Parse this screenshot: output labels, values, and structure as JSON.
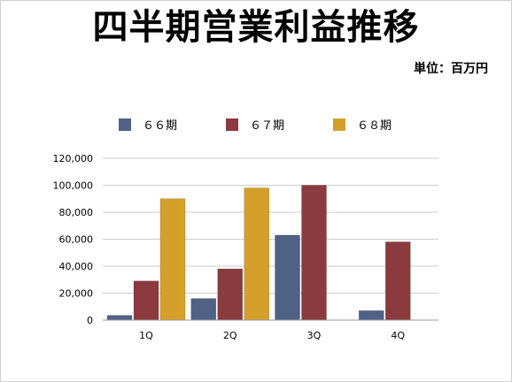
{
  "title": "四半期営業利益推移",
  "unit_label": "単位：百万円",
  "chart_data": {
    "type": "bar",
    "categories": [
      "1Q",
      "2Q",
      "3Q",
      "4Q"
    ],
    "series": [
      {
        "name": "６６期",
        "color": "#4f6185",
        "values": [
          3500,
          16000,
          63000,
          7000
        ]
      },
      {
        "name": "６７期",
        "color": "#8b3a3e",
        "values": [
          29000,
          38000,
          100000,
          58000
        ]
      },
      {
        "name": "６８期",
        "color": "#d4a02a",
        "values": [
          90000,
          98000,
          null,
          null
        ]
      }
    ],
    "y_ticks": [
      "0",
      "20,000",
      "40,000",
      "60,000",
      "80,000",
      "100,000",
      "120,000"
    ],
    "ylim": [
      0,
      120000
    ],
    "grid": true,
    "legend_position": "top"
  }
}
